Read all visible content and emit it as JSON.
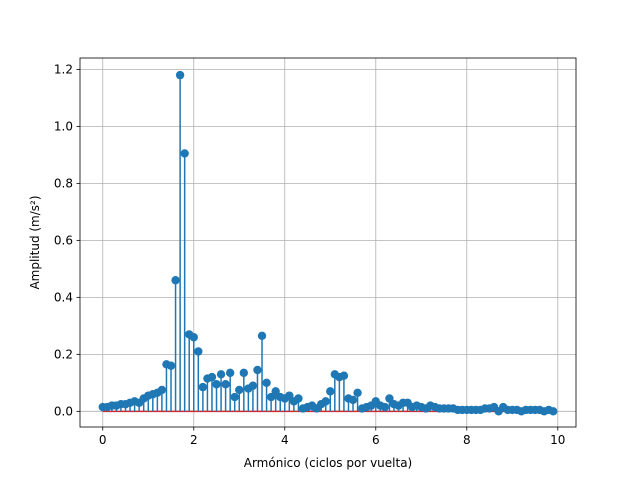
{
  "chart_data": {
    "type": "stem",
    "title": "",
    "xlabel": "Armónico (ciclos por vuelta)",
    "ylabel": "Amplitud (m/s²)",
    "xlim": [
      -0.5,
      10.4
    ],
    "ylim": [
      -0.055,
      1.24
    ],
    "xticks": [
      0,
      2,
      4,
      6,
      8,
      10
    ],
    "xtick_labels": [
      "0",
      "2",
      "4",
      "6",
      "8",
      "10"
    ],
    "yticks": [
      0.0,
      0.2,
      0.4,
      0.6,
      0.8,
      1.0,
      1.2
    ],
    "ytick_labels": [
      "0.0",
      "0.2",
      "0.4",
      "0.6",
      "0.8",
      "1.0",
      "1.2"
    ],
    "grid": true,
    "colors": {
      "stem": "#1f77b4",
      "baseline": "#d62728",
      "grid": "#b0b0b0"
    },
    "baseline": 0,
    "x": [
      0.0,
      0.1,
      0.2,
      0.3,
      0.4,
      0.5,
      0.6,
      0.7,
      0.8,
      0.9,
      1.0,
      1.1,
      1.2,
      1.3,
      1.4,
      1.5,
      1.6,
      1.7,
      1.8,
      1.9,
      2.0,
      2.1,
      2.2,
      2.3,
      2.4,
      2.5,
      2.6,
      2.7,
      2.8,
      2.9,
      3.0,
      3.1,
      3.2,
      3.3,
      3.4,
      3.5,
      3.6,
      3.7,
      3.8,
      3.9,
      4.0,
      4.1,
      4.2,
      4.3,
      4.4,
      4.5,
      4.6,
      4.7,
      4.8,
      4.9,
      5.0,
      5.1,
      5.2,
      5.3,
      5.4,
      5.5,
      5.6,
      5.7,
      5.8,
      5.9,
      6.0,
      6.1,
      6.2,
      6.3,
      6.4,
      6.5,
      6.6,
      6.7,
      6.8,
      6.9,
      7.0,
      7.1,
      7.2,
      7.3,
      7.4,
      7.5,
      7.6,
      7.7,
      7.8,
      7.9,
      8.0,
      8.1,
      8.2,
      8.3,
      8.4,
      8.5,
      8.6,
      8.7,
      8.8,
      8.9,
      9.0,
      9.1,
      9.2,
      9.3,
      9.4,
      9.5,
      9.6,
      9.7,
      9.8,
      9.9
    ],
    "y": [
      0.015,
      0.015,
      0.02,
      0.02,
      0.025,
      0.025,
      0.03,
      0.035,
      0.03,
      0.045,
      0.055,
      0.06,
      0.065,
      0.075,
      0.165,
      0.16,
      0.46,
      1.18,
      0.905,
      0.27,
      0.26,
      0.21,
      0.085,
      0.115,
      0.12,
      0.095,
      0.13,
      0.095,
      0.135,
      0.05,
      0.075,
      0.135,
      0.08,
      0.09,
      0.145,
      0.265,
      0.1,
      0.05,
      0.07,
      0.05,
      0.045,
      0.055,
      0.035,
      0.045,
      0.01,
      0.015,
      0.02,
      0.01,
      0.025,
      0.035,
      0.07,
      0.13,
      0.12,
      0.125,
      0.045,
      0.04,
      0.065,
      0.01,
      0.015,
      0.02,
      0.035,
      0.02,
      0.015,
      0.045,
      0.025,
      0.02,
      0.03,
      0.03,
      0.015,
      0.02,
      0.015,
      0.01,
      0.02,
      0.015,
      0.01,
      0.01,
      0.01,
      0.01,
      0.005,
      0.005,
      0.005,
      0.005,
      0.005,
      0.005,
      0.01,
      0.01,
      0.015,
      0.0,
      0.015,
      0.005,
      0.005,
      0.005,
      0.0,
      0.005,
      0.005,
      0.005,
      0.005,
      0.0,
      0.005,
      0.0
    ]
  }
}
